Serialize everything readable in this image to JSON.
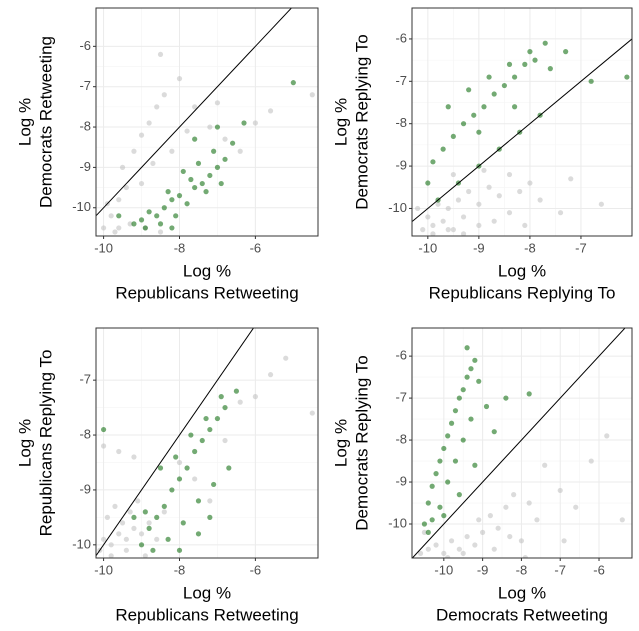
{
  "chart_data": [
    {
      "type": "scatter",
      "x_label": [
        "Log %",
        "Republicans Retweeting"
      ],
      "y_label": [
        "Log %",
        "Democrats Retweeting"
      ],
      "xlim": [
        -10.2,
        -4.35
      ],
      "ylim": [
        -10.7,
        -5.05
      ],
      "xticks": [
        -10,
        -8,
        -6
      ],
      "yticks": [
        -10,
        -9,
        -8,
        -7,
        -6
      ],
      "grid": true,
      "diagonal": true,
      "series": [
        {
          "color": "#bdbdbd",
          "x": [
            -10,
            -9.8,
            -9.6,
            -9.4,
            -9.9,
            -9.5,
            -9.2,
            -9,
            -8.8,
            -8.6,
            -8.4,
            -8,
            -7.6,
            -7.2,
            -6.8,
            -6.4,
            -9.7,
            -9.3,
            -8.9,
            -8.5,
            -9,
            -8.7,
            -8.2,
            -7.8,
            -6,
            -5.6,
            -4.5,
            -8.5,
            -7,
            -9.6
          ],
          "y": [
            -10.5,
            -10.2,
            -9.8,
            -9.5,
            -9.9,
            -9,
            -8.6,
            -8.2,
            -7.9,
            -7.5,
            -7.2,
            -6.8,
            -7.5,
            -8,
            -8.3,
            -8.6,
            -10.6,
            -10.4,
            -10.5,
            -10.6,
            -9.4,
            -8.9,
            -8.6,
            -8.1,
            -7.9,
            -7.6,
            -7.2,
            -6.2,
            -7.4,
            -10.5
          ]
        },
        {
          "color": "#006400",
          "x": [
            -9.2,
            -9,
            -8.8,
            -8.6,
            -8.4,
            -8.2,
            -8,
            -7.8,
            -7.6,
            -7.4,
            -7.2,
            -7,
            -6.8,
            -8.5,
            -8.1,
            -7.7,
            -7.3,
            -6.9,
            -8.9,
            -8.3,
            -7.9,
            -7.5,
            -7.1,
            -6.6,
            -5,
            -6.3,
            -7.6,
            -9.6,
            -8.2,
            -7
          ],
          "y": [
            -10.4,
            -10.3,
            -10.1,
            -10.2,
            -10,
            -9.8,
            -9.7,
            -9.9,
            -9.5,
            -9.4,
            -9.2,
            -9,
            -8.8,
            -10.4,
            -10.2,
            -9.3,
            -9.6,
            -9.4,
            -10.5,
            -9.6,
            -9.1,
            -8.9,
            -8.6,
            -8.4,
            -6.9,
            -7.9,
            -8.3,
            -10.2,
            -10.5,
            -8
          ]
        }
      ]
    },
    {
      "type": "scatter",
      "x_label": [
        "Log %",
        "Republicans Replying To"
      ],
      "y_label": [
        "Log %",
        "Democrats Replying To"
      ],
      "xlim": [
        -10.31,
        -6.0
      ],
      "ylim": [
        -10.65,
        -5.27
      ],
      "xticks": [
        -10,
        -9,
        -8,
        -7
      ],
      "yticks": [
        -10,
        -9,
        -8,
        -7,
        -6
      ],
      "grid": true,
      "diagonal": true,
      "series": [
        {
          "color": "#bdbdbd",
          "x": [
            -10.1,
            -10,
            -9.9,
            -9.8,
            -9.7,
            -9.6,
            -9.5,
            -9.4,
            -9.3,
            -9.2,
            -9,
            -8.8,
            -8.6,
            -8.4,
            -8.2,
            -8,
            -7.8,
            -7.4,
            -9.9,
            -9.6,
            -9.3,
            -9,
            -8.7,
            -8.4,
            -10.2,
            -9.5,
            -8.9,
            -7.2,
            -6.6,
            -8.1
          ],
          "y": [
            -10.5,
            -10.2,
            -10.4,
            -9.9,
            -10.3,
            -10,
            -10.5,
            -9.8,
            -10.2,
            -9.6,
            -9.9,
            -9.5,
            -9.7,
            -9.2,
            -9.6,
            -9.4,
            -9.8,
            -10.1,
            -10.6,
            -10.5,
            -10.6,
            -10.4,
            -10.3,
            -10.1,
            -10,
            -9.2,
            -9.1,
            -9.3,
            -9.9,
            -10.4
          ]
        },
        {
          "color": "#006400",
          "x": [
            -10,
            -9.9,
            -9.7,
            -9.5,
            -9.3,
            -9.1,
            -8.9,
            -8.7,
            -8.5,
            -8.3,
            -8.1,
            -7.9,
            -7.7,
            -9.8,
            -9.4,
            -9,
            -8.6,
            -8.2,
            -7.8,
            -9.6,
            -9.2,
            -8.8,
            -8.4,
            -8,
            -7.6,
            -7.3,
            -6.8,
            -6.1,
            -9,
            -8.3
          ],
          "y": [
            -9.4,
            -8.9,
            -8.6,
            -8.3,
            -8,
            -7.8,
            -7.6,
            -7.3,
            -7.1,
            -6.9,
            -6.6,
            -6.5,
            -6.1,
            -9.8,
            -9.4,
            -9,
            -8.6,
            -8.2,
            -7.8,
            -7.6,
            -7.2,
            -6.9,
            -6.6,
            -6.3,
            -6.7,
            -6.3,
            -7,
            -6.9,
            -8.2,
            -7.6
          ]
        }
      ]
    },
    {
      "type": "scatter",
      "x_label": [
        "Log %",
        "Republicans Retweeting"
      ],
      "y_label": [
        "Log %",
        "Republicans Replying To"
      ],
      "xlim": [
        -10.2,
        -4.35
      ],
      "ylim": [
        -10.24,
        -6.05
      ],
      "xticks": [
        -10,
        -8,
        -6
      ],
      "yticks": [
        -10,
        -9,
        -8,
        -7
      ],
      "grid": true,
      "diagonal": true,
      "series": [
        {
          "color": "#bdbdbd",
          "x": [
            -10.1,
            -10,
            -9.8,
            -9.6,
            -9.4,
            -9.2,
            -9,
            -8.8,
            -9.9,
            -9.7,
            -9.5,
            -9.3,
            -9.1,
            -8.6,
            -8.4,
            -10,
            -9.6,
            -9.2,
            -8,
            -7.6,
            -7.2,
            -6.8,
            -6.4,
            -6,
            -5.2,
            -4.5,
            -5.6,
            -9.8,
            -9.4,
            -8.9
          ],
          "y": [
            -10.1,
            -9.9,
            -10,
            -9.8,
            -9.9,
            -9.7,
            -9.8,
            -9.6,
            -9.5,
            -9.3,
            -9.6,
            -9.4,
            -9.2,
            -9.9,
            -9.4,
            -8.2,
            -8.3,
            -8.4,
            -8.5,
            -8.8,
            -9.2,
            -8.1,
            -7.4,
            -7.3,
            -6.6,
            -7.6,
            -6.9,
            -10.2,
            -10.1,
            -10.2
          ]
        },
        {
          "color": "#006400",
          "x": [
            -9,
            -8.8,
            -8.6,
            -8.4,
            -8.2,
            -8,
            -7.8,
            -7.6,
            -7.4,
            -7.2,
            -7,
            -6.8,
            -8.7,
            -8.3,
            -7.9,
            -7.5,
            -7.1,
            -8.5,
            -8.1,
            -7.7,
            -7.3,
            -6.9,
            -8.9,
            -8,
            -7.5,
            -7.2,
            -6.7,
            -10,
            -9.2,
            -6.5
          ],
          "y": [
            -10,
            -9.7,
            -9.5,
            -9.3,
            -9,
            -8.8,
            -8.6,
            -8.3,
            -8.1,
            -7.9,
            -7.7,
            -7.5,
            -10.1,
            -9.9,
            -9.6,
            -9.2,
            -8.9,
            -8.6,
            -8.4,
            -8,
            -7.7,
            -7.3,
            -9.4,
            -10.1,
            -9.8,
            -9.5,
            -8.6,
            -7.9,
            -9.5,
            -7.2
          ]
        }
      ]
    },
    {
      "type": "scatter",
      "x_label": [
        "Log %",
        "Democrats Retweeting"
      ],
      "y_label": [
        "Log %",
        "Democrats Replying To"
      ],
      "xlim": [
        -10.82,
        -5.15
      ],
      "ylim": [
        -10.81,
        -5.33
      ],
      "xticks": [
        -10,
        -9,
        -8,
        -7,
        -6
      ],
      "yticks": [
        -10,
        -9,
        -8,
        -7,
        -6
      ],
      "grid": true,
      "diagonal": true,
      "series": [
        {
          "color": "#bdbdbd",
          "x": [
            -10.6,
            -10.4,
            -10.2,
            -10,
            -9.8,
            -9.6,
            -9.4,
            -9.2,
            -9,
            -8.8,
            -8.6,
            -8.4,
            -8.2,
            -8,
            -7.8,
            -7.6,
            -7.4,
            -7,
            -6.6,
            -6.2,
            -5.8,
            -5.4,
            -9.9,
            -9.5,
            -9.1,
            -8.7,
            -8.3,
            -7.9,
            -10.5,
            -6.9
          ],
          "y": [
            -10.7,
            -10.6,
            -10.5,
            -10.7,
            -10.4,
            -10.6,
            -10.3,
            -10.5,
            -10.2,
            -9.8,
            -10.1,
            -9.6,
            -9.3,
            -10.4,
            -9.5,
            -9.9,
            -8.6,
            -9.2,
            -9.6,
            -8.5,
            -7.9,
            -9.9,
            -10.8,
            -10.7,
            -9.9,
            -10.6,
            -10.3,
            -10.8,
            -10.2,
            -10.4
          ]
        },
        {
          "color": "#006400",
          "x": [
            -10.5,
            -10.4,
            -10.3,
            -10.2,
            -10.1,
            -10,
            -9.9,
            -9.8,
            -9.7,
            -9.6,
            -9.5,
            -9.4,
            -9.3,
            -9.2,
            -9.1,
            -10.3,
            -10.1,
            -9.9,
            -9.7,
            -9.5,
            -9.3,
            -10.4,
            -10,
            -9.6,
            -9.2,
            -8.9,
            -8.7,
            -8.4,
            -7.8,
            -9.4
          ],
          "y": [
            -10,
            -9.5,
            -9.1,
            -8.8,
            -8.5,
            -8.2,
            -7.9,
            -7.6,
            -7.3,
            -7,
            -6.8,
            -6.5,
            -6.3,
            -6.1,
            -6.6,
            -9.9,
            -9.6,
            -9,
            -8.5,
            -8,
            -7.5,
            -10.2,
            -9.8,
            -9.3,
            -8.6,
            -7.2,
            -7.8,
            -7,
            -6.9,
            -5.8
          ]
        }
      ]
    }
  ]
}
